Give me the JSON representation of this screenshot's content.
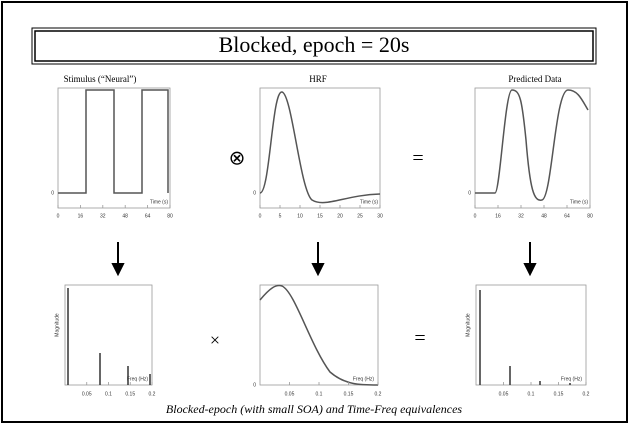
{
  "title": "Blocked, epoch = 20s",
  "columns": [
    "Stimulus (“Neural”)",
    "HRF",
    "Predicted Data"
  ],
  "operators": {
    "top": [
      "⊗",
      "="
    ],
    "bottom": [
      "×",
      "="
    ]
  },
  "time_plots": [
    {
      "y_origin": "0",
      "xticks": [
        "0",
        "16",
        "32",
        "48",
        "64",
        "80"
      ],
      "xlabel": "Time (s)"
    },
    {
      "y_origin": "0",
      "xticks": [
        "0",
        "5",
        "10",
        "15",
        "20",
        "25",
        "30"
      ],
      "xlabel": "Time (s)"
    },
    {
      "y_origin": "0",
      "xticks": [
        "0",
        "16",
        "32",
        "48",
        "64",
        "80"
      ],
      "xlabel": "Time (s)"
    }
  ],
  "freq_plots": [
    {
      "ylabel": "Magnitude",
      "xticks": [
        "0.05",
        "0.1",
        "0.15",
        "0.2"
      ],
      "xlabel": "Freq (Hz)"
    },
    {
      "y_origin": "0",
      "xticks": [
        "0.05",
        "0.1",
        "0.15",
        "0.2"
      ],
      "xlabel": "Freq (Hz)"
    },
    {
      "ylabel": "Magnitude",
      "xticks": [
        "0.05",
        "0.1",
        "0.15",
        "0.2"
      ],
      "xlabel": "Freq (Hz)"
    }
  ],
  "caption": "Blocked-epoch (with small SOA) and Time-Freq equivalences"
}
